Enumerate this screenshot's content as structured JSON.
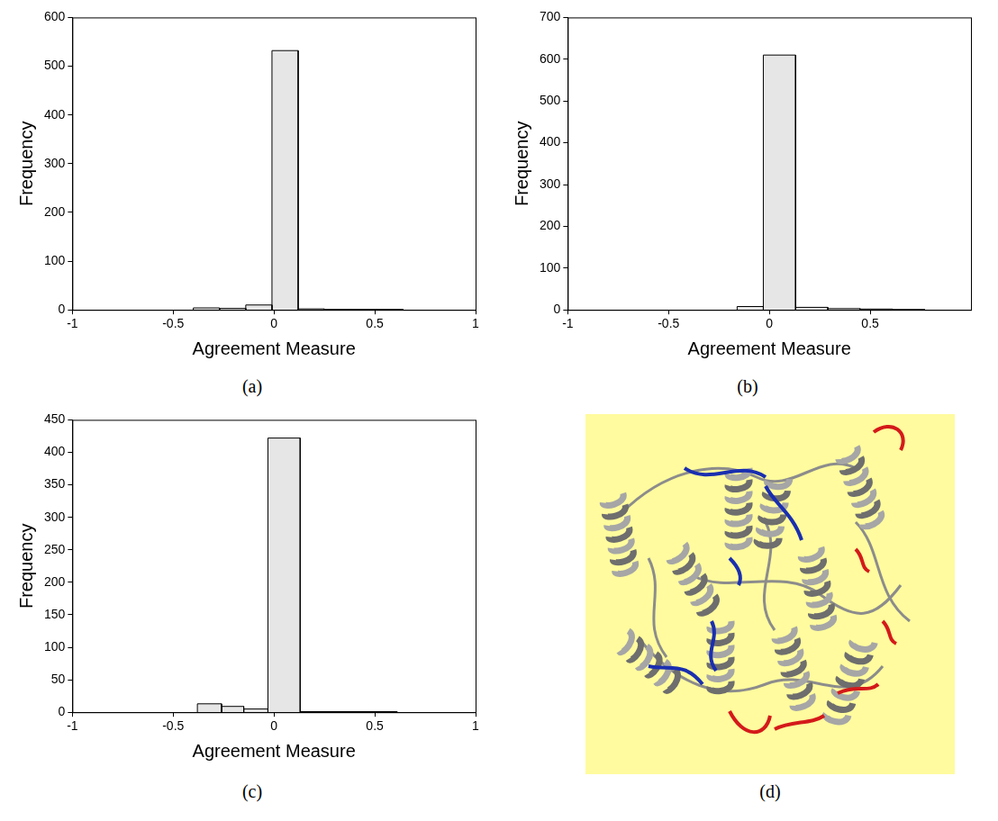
{
  "chart_data": [
    {
      "type": "histogram",
      "title": "(a)",
      "xlabel": "Agreement Measure",
      "ylabel": "Frequency",
      "bins": [
        -0.4,
        -0.27,
        -0.14,
        -0.01,
        0.12,
        0.25,
        0.38,
        0.51,
        0.64
      ],
      "counts": [
        4,
        3,
        10,
        532,
        2,
        1,
        1,
        1
      ],
      "xlim": [
        -1,
        1
      ],
      "xticks": [
        -1,
        -0.5,
        0,
        0.5,
        1
      ],
      "ylim": [
        0,
        600
      ],
      "yticks": [
        0,
        100,
        200,
        300,
        400,
        500,
        600
      ],
      "color": "#e6e6e6",
      "grid": false
    },
    {
      "type": "histogram",
      "title": "(b)",
      "xlabel": "Agreement Measure",
      "ylabel": "Frequency",
      "bins": [
        -0.16,
        -0.03,
        0.13,
        0.29,
        0.45,
        0.61,
        0.77
      ],
      "counts": [
        8,
        610,
        6,
        3,
        2,
        1
      ],
      "xlim": [
        -1,
        1
      ],
      "xticks": [
        -1,
        -0.5,
        0,
        0.5
      ],
      "ylim": [
        0,
        700
      ],
      "yticks": [
        0,
        100,
        200,
        300,
        400,
        500,
        600,
        700
      ],
      "color": "#e6e6e6",
      "grid": false
    },
    {
      "type": "histogram",
      "title": "(c)",
      "xlabel": "Agreement Measure",
      "ylabel": "Frequency",
      "bins": [
        -0.38,
        -0.26,
        -0.15,
        -0.03,
        0.13,
        0.29,
        0.45,
        0.61
      ],
      "counts": [
        13,
        9,
        5,
        422,
        1,
        1,
        1
      ],
      "xlim": [
        -1,
        1
      ],
      "xticks": [
        -1,
        -0.5,
        0,
        0.5,
        1
      ],
      "ylim": [
        0,
        450
      ],
      "yticks": [
        0,
        50,
        100,
        150,
        200,
        250,
        300,
        350,
        400,
        450
      ],
      "color": "#e6e6e6",
      "grid": false
    }
  ],
  "image": {
    "title": "(d)"
  }
}
